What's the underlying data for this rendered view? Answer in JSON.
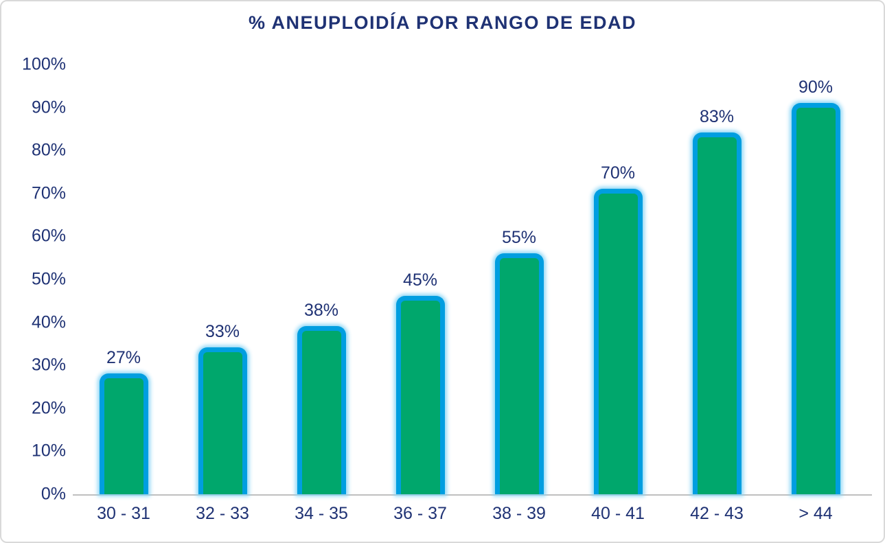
{
  "chart_data": {
    "type": "bar",
    "title": "% ANEUPLOIDÍA POR RANGO DE EDAD",
    "categories": [
      "30 - 31",
      "32 - 33",
      "34 - 35",
      "36 - 37",
      "38 - 39",
      "40 - 41",
      "42 - 43",
      "> 44"
    ],
    "values": [
      27,
      33,
      38,
      45,
      55,
      70,
      83,
      90
    ],
    "data_labels": [
      "27%",
      "33%",
      "38%",
      "45%",
      "55%",
      "70%",
      "83%",
      "90%"
    ],
    "y_ticks": [
      "0%",
      "10%",
      "20%",
      "30%",
      "40%",
      "50%",
      "60%",
      "70%",
      "80%",
      "90%",
      "100%"
    ],
    "xlabel": "",
    "ylabel": "",
    "ylim": [
      0,
      100
    ],
    "grid": false,
    "legend_position": "none",
    "colors": {
      "bar_fill": "#00a76c",
      "bar_border": "#009ee0",
      "bar_glow": "#8cd6f6",
      "text": "#1f3274",
      "axis_line": "#bfbfbf",
      "frame_border": "#d9d9d9",
      "background": "#ffffff"
    }
  }
}
